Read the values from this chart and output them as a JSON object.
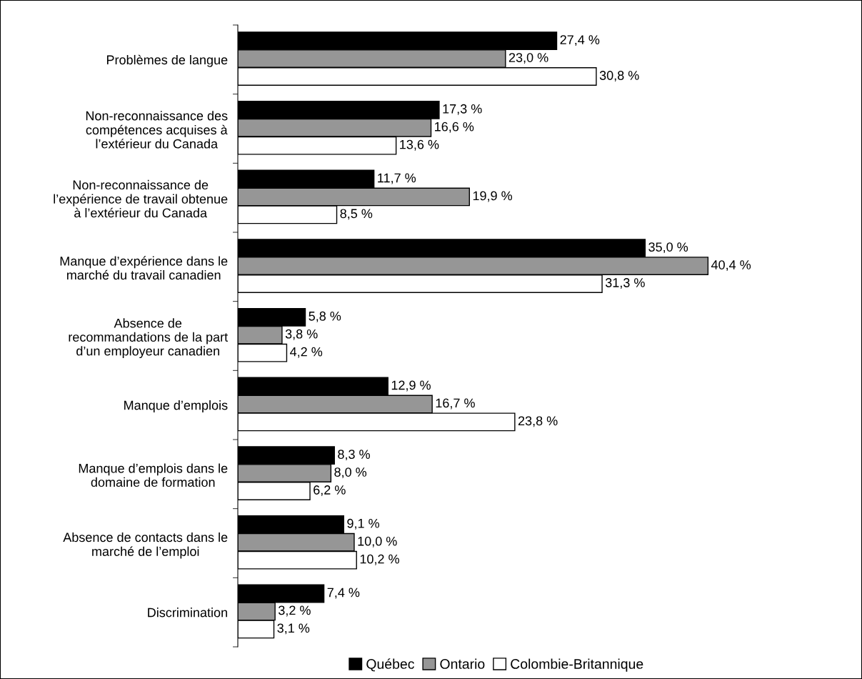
{
  "chart_data": {
    "type": "bar",
    "orientation": "horizontal",
    "legend": "bottom",
    "grid": false,
    "categories": [
      "Problèmes de langue",
      "Non-reconnaissance des\ncompétences acquises à\nl’extérieur du Canada",
      "Non-reconnaissance de\nl’expérience de travail obtenue\nà l’extérieur du Canada",
      "Manque d’expérience dans le\nmarché du travail canadien",
      "Absence de\nrecommandations de la part\nd’un employeur canadien",
      "Manque d’emplois",
      "Manque d’emplois dans le\ndomaine de formation",
      "Absence de contacts dans le\nmarché de l’emploi",
      "Discrimination"
    ],
    "series": [
      {
        "name": "Québec",
        "color": "#000000",
        "values": [
          27.4,
          17.3,
          11.7,
          35.0,
          5.8,
          12.9,
          8.3,
          9.1,
          7.4
        ],
        "value_labels": [
          "27,4 %",
          "17,3 %",
          "11,7 %",
          "35,0 %",
          "5,8 %",
          "12,9 %",
          "8,3 %",
          "9,1 %",
          "7,4 %"
        ]
      },
      {
        "name": "Ontario",
        "color": "#969696",
        "values": [
          23.0,
          16.6,
          19.9,
          40.4,
          3.8,
          16.7,
          8.0,
          10.0,
          3.2
        ],
        "value_labels": [
          "23,0 %",
          "16,6 %",
          "19,9 %",
          "40,4 %",
          "3,8 %",
          "16,7 %",
          "8,0 %",
          "10,0 %",
          "3,2 %"
        ]
      },
      {
        "name": "Colombie-Britannique",
        "color": "#ffffff",
        "values": [
          30.8,
          13.6,
          8.5,
          31.3,
          4.2,
          23.8,
          6.2,
          10.2,
          3.1
        ],
        "value_labels": [
          "30,8 %",
          "13,6 %",
          "8,5 %",
          "31,3 %",
          "4,2 %",
          "23,8 %",
          "6,2 %",
          "10,2 %",
          "3,1 %"
        ]
      }
    ]
  }
}
